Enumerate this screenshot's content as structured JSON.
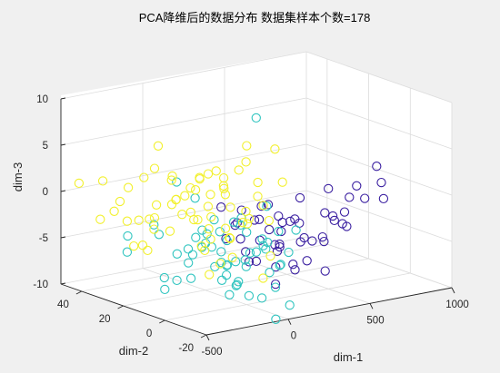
{
  "chart_data": {
    "type": "scatter",
    "title": "PCA降维后的数据分布   数据集样本个数=178",
    "xlabel": "dim-1",
    "ylabel": "dim-2",
    "zlabel": "dim-3",
    "xlim": [
      -500,
      1000
    ],
    "ylim": [
      -20,
      50
    ],
    "zlim": [
      -10,
      10
    ],
    "xticks": [
      "-500",
      "0",
      "500",
      "1000"
    ],
    "yticks": [
      "-20",
      "0",
      "20",
      "40"
    ],
    "zticks": [
      "-10",
      "-5",
      "0",
      "5",
      "10"
    ],
    "grid": true,
    "view": "3d",
    "colors": {
      "class1": "#3a1fa0",
      "class2": "#2ec4bf",
      "class3": "#f2f02c",
      "background": "#f0f0f0"
    },
    "series": [
      {
        "class": "class1",
        "color": "#3a1fa0",
        "points": [
          [
            900,
            5,
            -2
          ],
          [
            820,
            2,
            2
          ],
          [
            780,
            12,
            -2
          ],
          [
            760,
            -5,
            1
          ],
          [
            700,
            8,
            -3
          ],
          [
            690,
            15,
            -1
          ],
          [
            650,
            3,
            -4
          ],
          [
            620,
            -8,
            0
          ],
          [
            600,
            10,
            -6
          ],
          [
            580,
            20,
            -2
          ],
          [
            560,
            -2,
            -3
          ],
          [
            540,
            6,
            -5
          ],
          [
            520,
            -12,
            2
          ],
          [
            500,
            14,
            -4
          ],
          [
            480,
            0,
            -8
          ],
          [
            460,
            -6,
            -2
          ],
          [
            440,
            18,
            -5
          ],
          [
            420,
            4,
            -7
          ],
          [
            400,
            -10,
            -1
          ],
          [
            380,
            9,
            -3
          ],
          [
            360,
            22,
            -6
          ],
          [
            350,
            -4,
            -4
          ],
          [
            330,
            12,
            -8
          ],
          [
            320,
            2,
            -2
          ],
          [
            300,
            -14,
            0
          ],
          [
            290,
            7,
            -5
          ],
          [
            280,
            16,
            -3
          ],
          [
            270,
            -2,
            -7
          ],
          [
            260,
            25,
            -4
          ],
          [
            250,
            -8,
            -3
          ],
          [
            240,
            5,
            -9
          ],
          [
            230,
            11,
            -1
          ],
          [
            220,
            -5,
            -6
          ],
          [
            210,
            19,
            -2
          ],
          [
            200,
            1,
            -5
          ],
          [
            190,
            -11,
            -3
          ],
          [
            180,
            13,
            -7
          ],
          [
            170,
            3,
            0
          ],
          [
            160,
            -1,
            -4
          ],
          [
            150,
            8,
            -2
          ],
          [
            140,
            21,
            -5
          ],
          [
            130,
            -7,
            -1
          ],
          [
            120,
            15,
            -3
          ],
          [
            110,
            4,
            -6
          ],
          [
            100,
            -3,
            -2
          ],
          [
            90,
            10,
            -4
          ],
          [
            80,
            -9,
            0
          ],
          [
            70,
            6,
            -5
          ],
          [
            60,
            17,
            -1
          ],
          [
            50,
            -12,
            -3
          ]
        ]
      },
      {
        "class": "class2",
        "color": "#2ec4bf",
        "points": [
          [
            250,
            10,
            -1
          ],
          [
            220,
            2,
            -3
          ],
          [
            200,
            -8,
            -2
          ],
          [
            190,
            15,
            -4
          ],
          [
            180,
            5,
            -5
          ],
          [
            170,
            -3,
            -6
          ],
          [
            160,
            8,
            9
          ],
          [
            150,
            18,
            -3
          ],
          [
            140,
            0,
            -7
          ],
          [
            130,
            -10,
            -4
          ],
          [
            120,
            12,
            -2
          ],
          [
            110,
            4,
            -5
          ],
          [
            100,
            -6,
            -8
          ],
          [
            90,
            20,
            -4
          ],
          [
            80,
            7,
            -6
          ],
          [
            70,
            -2,
            -3
          ],
          [
            60,
            14,
            -7
          ],
          [
            50,
            -12,
            -5
          ],
          [
            40,
            6,
            -2
          ],
          [
            30,
            -5,
            -9
          ],
          [
            20,
            11,
            -4
          ],
          [
            10,
            1,
            -6
          ],
          [
            0,
            -8,
            -3
          ],
          [
            -10,
            16,
            -5
          ],
          [
            -20,
            3,
            -8
          ],
          [
            -30,
            -4,
            -4
          ],
          [
            -40,
            9,
            -6
          ],
          [
            -50,
            -14,
            -2
          ],
          [
            -60,
            5,
            -7
          ],
          [
            -70,
            19,
            -4
          ],
          [
            -80,
            -1,
            -5
          ],
          [
            -90,
            12,
            -3
          ],
          [
            -100,
            -9,
            -8
          ],
          [
            -110,
            7,
            -1
          ],
          [
            -120,
            24,
            -6
          ],
          [
            -130,
            2,
            -4
          ],
          [
            -140,
            -6,
            -7
          ],
          [
            -150,
            13,
            1
          ],
          [
            -160,
            -3,
            -5
          ],
          [
            -170,
            8,
            -2
          ],
          [
            -180,
            28,
            -4
          ],
          [
            -190,
            -11,
            -6
          ],
          [
            -200,
            4,
            -3
          ],
          [
            -210,
            17,
            -8
          ],
          [
            -220,
            -2,
            -5
          ],
          [
            -230,
            10,
            -4
          ],
          [
            -240,
            -7,
            -6
          ],
          [
            -250,
            14,
            3
          ],
          [
            -260,
            1,
            -3
          ],
          [
            -270,
            -13,
            -7
          ],
          [
            -280,
            6,
            -5
          ],
          [
            -300,
            21,
            -2
          ],
          [
            -320,
            32,
            -4
          ],
          [
            -340,
            0,
            -6
          ],
          [
            -360,
            11,
            -8
          ],
          [
            -380,
            -4,
            -3
          ],
          [
            -400,
            26,
            -5
          ],
          [
            60,
            -16,
            -9
          ],
          [
            -50,
            -18,
            -10
          ],
          [
            -20,
            38,
            -10
          ]
        ]
      },
      {
        "class": "class3",
        "color": "#f2f02c",
        "points": [
          [
            250,
            20,
            3
          ],
          [
            220,
            12,
            0
          ],
          [
            200,
            5,
            -2
          ],
          [
            190,
            26,
            1
          ],
          [
            180,
            16,
            -3
          ],
          [
            170,
            8,
            2
          ],
          [
            160,
            30,
            -1
          ],
          [
            150,
            22,
            -4
          ],
          [
            140,
            3,
            0
          ],
          [
            130,
            14,
            3
          ],
          [
            120,
            28,
            -2
          ],
          [
            110,
            9,
            -1
          ],
          [
            100,
            19,
            1
          ],
          [
            90,
            34,
            -3
          ],
          [
            80,
            6,
            -2
          ],
          [
            70,
            24,
            2
          ],
          [
            60,
            13,
            -4
          ],
          [
            50,
            31,
            0
          ],
          [
            40,
            2,
            -1
          ],
          [
            30,
            17,
            3
          ],
          [
            20,
            27,
            -3
          ],
          [
            10,
            11,
            1
          ],
          [
            0,
            36,
            -2
          ],
          [
            -10,
            7,
            0
          ],
          [
            -20,
            21,
            2
          ],
          [
            -30,
            15,
            -4
          ],
          [
            -40,
            33,
            1
          ],
          [
            -50,
            4,
            -3
          ],
          [
            -60,
            25,
            0
          ],
          [
            -70,
            18,
            -2
          ],
          [
            -80,
            38,
            2
          ],
          [
            -90,
            10,
            -1
          ],
          [
            -100,
            29,
            -4
          ],
          [
            -110,
            14,
            3
          ],
          [
            -120,
            40,
            1
          ],
          [
            -130,
            8,
            -2
          ],
          [
            -140,
            23,
            0
          ],
          [
            -150,
            35,
            -3
          ],
          [
            -160,
            12,
            2
          ],
          [
            -170,
            30,
            -1
          ],
          [
            -180,
            6,
            -4
          ],
          [
            -190,
            42,
            0
          ],
          [
            -200,
            20,
            3
          ],
          [
            -220,
            27,
            -2
          ],
          [
            -240,
            15,
            1
          ],
          [
            -260,
            37,
            -3
          ],
          [
            -280,
            9,
            0
          ],
          [
            -300,
            24,
            -5
          ],
          [
            -320,
            44,
            1
          ],
          [
            -350,
            17,
            -2
          ],
          [
            -380,
            31,
            0
          ],
          [
            -410,
            22,
            -4
          ],
          [
            -440,
            46,
            1
          ],
          [
            -470,
            13,
            -3
          ],
          [
            330,
            26,
            4
          ],
          [
            300,
            10,
            5
          ],
          [
            280,
            33,
            -1
          ],
          [
            270,
            4,
            2
          ],
          [
            -60,
            8,
            -6
          ],
          [
            -150,
            -5,
            -4
          ],
          [
            -250,
            2,
            -3
          ],
          [
            -330,
            -8,
            -5
          ],
          [
            50,
            -4,
            -7
          ],
          [
            120,
            -2,
            -5
          ],
          [
            -100,
            44,
            -4
          ],
          [
            -450,
            35,
            -2
          ],
          [
            -200,
            48,
            -3
          ],
          [
            -20,
            41,
            4
          ]
        ]
      }
    ]
  }
}
